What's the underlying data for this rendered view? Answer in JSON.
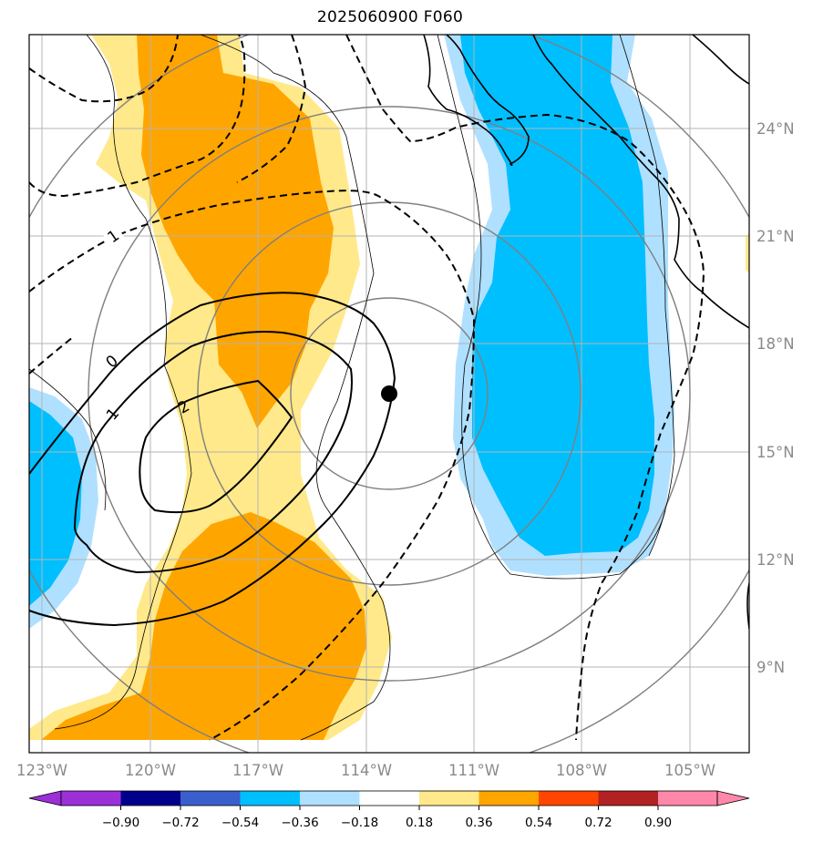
{
  "title": "2025060900 F060",
  "latitude_labels": [
    "24°N",
    "21°N",
    "18°N",
    "15°N",
    "12°N",
    "9°N"
  ],
  "longitude_labels": [
    "123°W",
    "120°W",
    "117°W",
    "114°W",
    "111°W",
    "108°W",
    "105°W"
  ],
  "contour_labels": [
    "1",
    "0",
    "1",
    "2"
  ],
  "colorbar": {
    "ticks": [
      "−0.90",
      "−0.72",
      "−0.54",
      "−0.36",
      "−0.18",
      "0.18",
      "0.36",
      "0.54",
      "0.72",
      "0.90"
    ],
    "colors": [
      "#9b30d9",
      "#00008b",
      "#3a5fcd",
      "#00bfff",
      "#b0e0ff",
      "#ffffff",
      "#ffe98a",
      "#ffa500",
      "#ff4500",
      "#b22222",
      "#ff88aa"
    ]
  },
  "colors": {
    "positive_light": "#ffe98a",
    "positive_strong": "#ffa500",
    "negative_light": "#b0e0ff",
    "negative_strong": "#00bfff"
  },
  "storm_center_marker": "filled-black-circle"
}
